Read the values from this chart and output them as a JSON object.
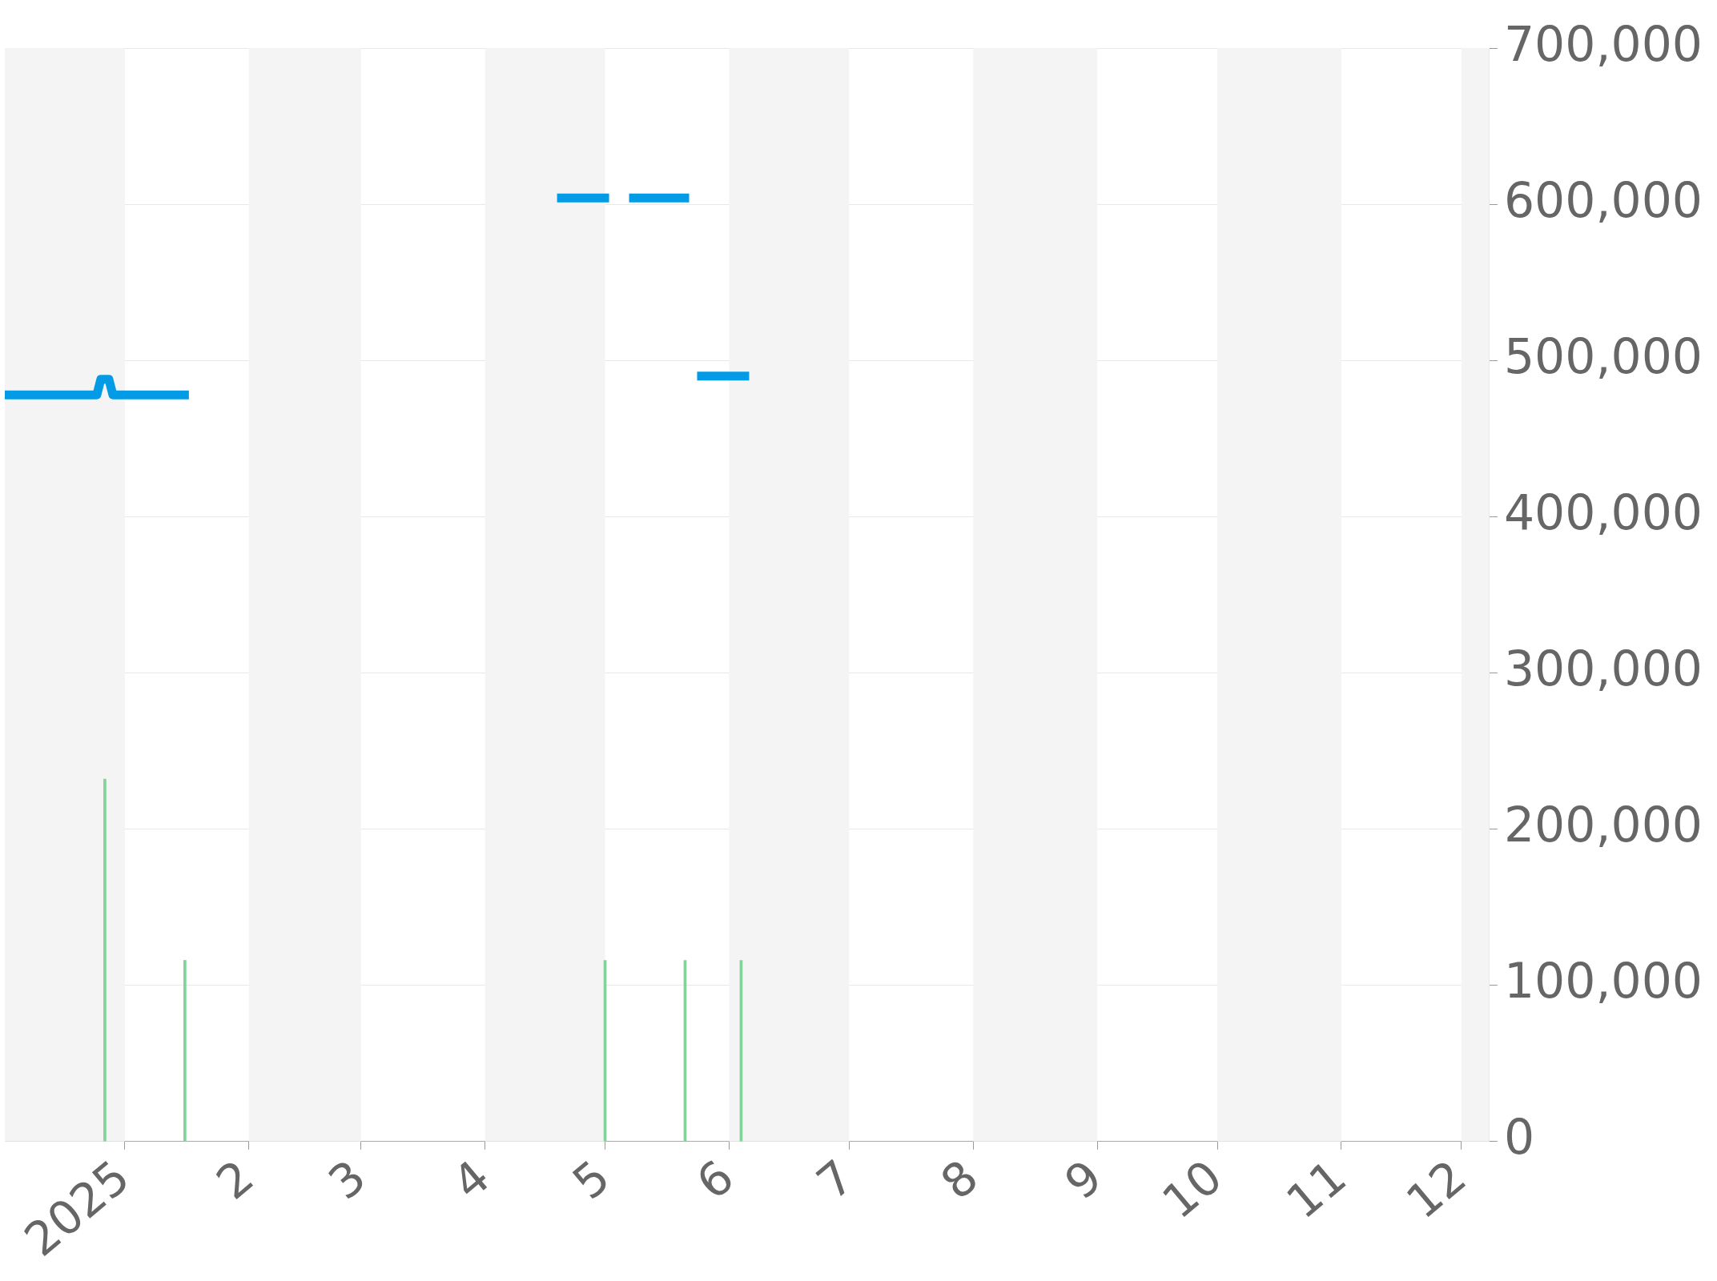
{
  "chart_data": {
    "type": "line",
    "xlim": [
      "2024-12-02",
      "2025-12-08"
    ],
    "xticks": [
      {
        "value": "2025-01-01",
        "label": "2025"
      },
      {
        "value": "2025-02-01",
        "label": "2"
      },
      {
        "value": "2025-03-01",
        "label": "3"
      },
      {
        "value": "2025-04-01",
        "label": "4"
      },
      {
        "value": "2025-05-01",
        "label": "5"
      },
      {
        "value": "2025-06-01",
        "label": "6"
      },
      {
        "value": "2025-07-01",
        "label": "7"
      },
      {
        "value": "2025-08-01",
        "label": "8"
      },
      {
        "value": "2025-09-01",
        "label": "9"
      },
      {
        "value": "2025-10-01",
        "label": "10"
      },
      {
        "value": "2025-11-01",
        "label": "11"
      },
      {
        "value": "2025-12-01",
        "label": "12"
      }
    ],
    "ylim": [
      0,
      700000
    ],
    "yticks": [
      {
        "value": 0,
        "label": "0"
      },
      {
        "value": 100000,
        "label": "100,000"
      },
      {
        "value": 200000,
        "label": "200,000"
      },
      {
        "value": 300000,
        "label": "300,000"
      },
      {
        "value": 400000,
        "label": "400,000"
      },
      {
        "value": 500000,
        "label": "500,000"
      },
      {
        "value": 600000,
        "label": "600,000"
      },
      {
        "value": 700000,
        "label": "700,000"
      }
    ],
    "grid": "y",
    "legend": false,
    "marker": "none",
    "line_style": "solid",
    "bands": [
      {
        "axis": "x",
        "from": "2024-12-02",
        "to": "2025-01-01",
        "color": "#f4f4f4"
      },
      {
        "axis": "x",
        "from": "2025-02-01",
        "to": "2025-03-01",
        "color": "#f4f4f4"
      },
      {
        "axis": "x",
        "from": "2025-04-01",
        "to": "2025-05-01",
        "color": "#f4f4f4"
      },
      {
        "axis": "x",
        "from": "2025-06-01",
        "to": "2025-07-01",
        "color": "#f4f4f4"
      },
      {
        "axis": "x",
        "from": "2025-08-01",
        "to": "2025-09-01",
        "color": "#f4f4f4"
      },
      {
        "axis": "x",
        "from": "2025-10-01",
        "to": "2025-11-01",
        "color": "#f4f4f4"
      },
      {
        "axis": "x",
        "from": "2025-12-01",
        "to": "2025-12-08",
        "color": "#f4f4f4"
      }
    ],
    "series": [
      {
        "type": "bar",
        "color": "#82d39a",
        "x": [
          "2024-12-27",
          "2025-01-16",
          "2025-05-01",
          "2025-05-21",
          "2025-06-04"
        ],
        "values": [
          232000,
          116000,
          116000,
          116000,
          116000
        ]
      },
      {
        "color": "#039be5",
        "x": [
          "2024-12-02",
          "2024-12-25",
          "2024-12-26",
          "2024-12-28",
          "2024-12-29",
          "2025-01-17",
          "2025-03-01",
          "2025-04-19",
          "2025-05-02",
          "2025-05-04",
          "2025-05-07",
          "2025-05-22",
          "2025-05-23",
          "2025-05-24",
          "2025-06-06"
        ],
        "values": [
          478000,
          478000,
          488000,
          488000,
          478000,
          478000,
          null,
          604000,
          604000,
          null,
          604000,
          604000,
          null,
          490000,
          490000
        ]
      }
    ]
  }
}
